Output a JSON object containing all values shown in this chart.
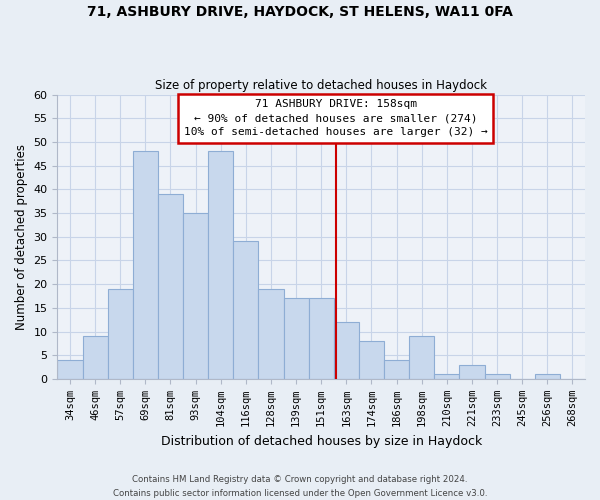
{
  "title": "71, ASHBURY DRIVE, HAYDOCK, ST HELENS, WA11 0FA",
  "subtitle": "Size of property relative to detached houses in Haydock",
  "xlabel": "Distribution of detached houses by size in Haydock",
  "ylabel": "Number of detached properties",
  "bin_labels": [
    "34sqm",
    "46sqm",
    "57sqm",
    "69sqm",
    "81sqm",
    "93sqm",
    "104sqm",
    "116sqm",
    "128sqm",
    "139sqm",
    "151sqm",
    "163sqm",
    "174sqm",
    "186sqm",
    "198sqm",
    "210sqm",
    "221sqm",
    "233sqm",
    "245sqm",
    "256sqm",
    "268sqm"
  ],
  "bar_heights": [
    4,
    9,
    19,
    48,
    39,
    35,
    48,
    29,
    19,
    17,
    17,
    12,
    8,
    4,
    9,
    1,
    3,
    1,
    0,
    1,
    0
  ],
  "bar_color": "#c8d8ed",
  "bar_edge_color": "#8eadd4",
  "annotation_box_text": "71 ASHBURY DRIVE: 158sqm\n← 90% of detached houses are smaller (274)\n10% of semi-detached houses are larger (32) →",
  "annotation_box_color": "#ffffff",
  "annotation_box_edge_color": "#cc0000",
  "annotation_line_color": "#cc0000",
  "ylim": [
    0,
    60
  ],
  "yticks": [
    0,
    5,
    10,
    15,
    20,
    25,
    30,
    35,
    40,
    45,
    50,
    55,
    60
  ],
  "footer_line1": "Contains HM Land Registry data © Crown copyright and database right 2024.",
  "footer_line2": "Contains public sector information licensed under the Open Government Licence v3.0.",
  "bg_color": "#e8eef5",
  "plot_bg_color": "#eef2f8",
  "grid_color": "#c8d4e8"
}
